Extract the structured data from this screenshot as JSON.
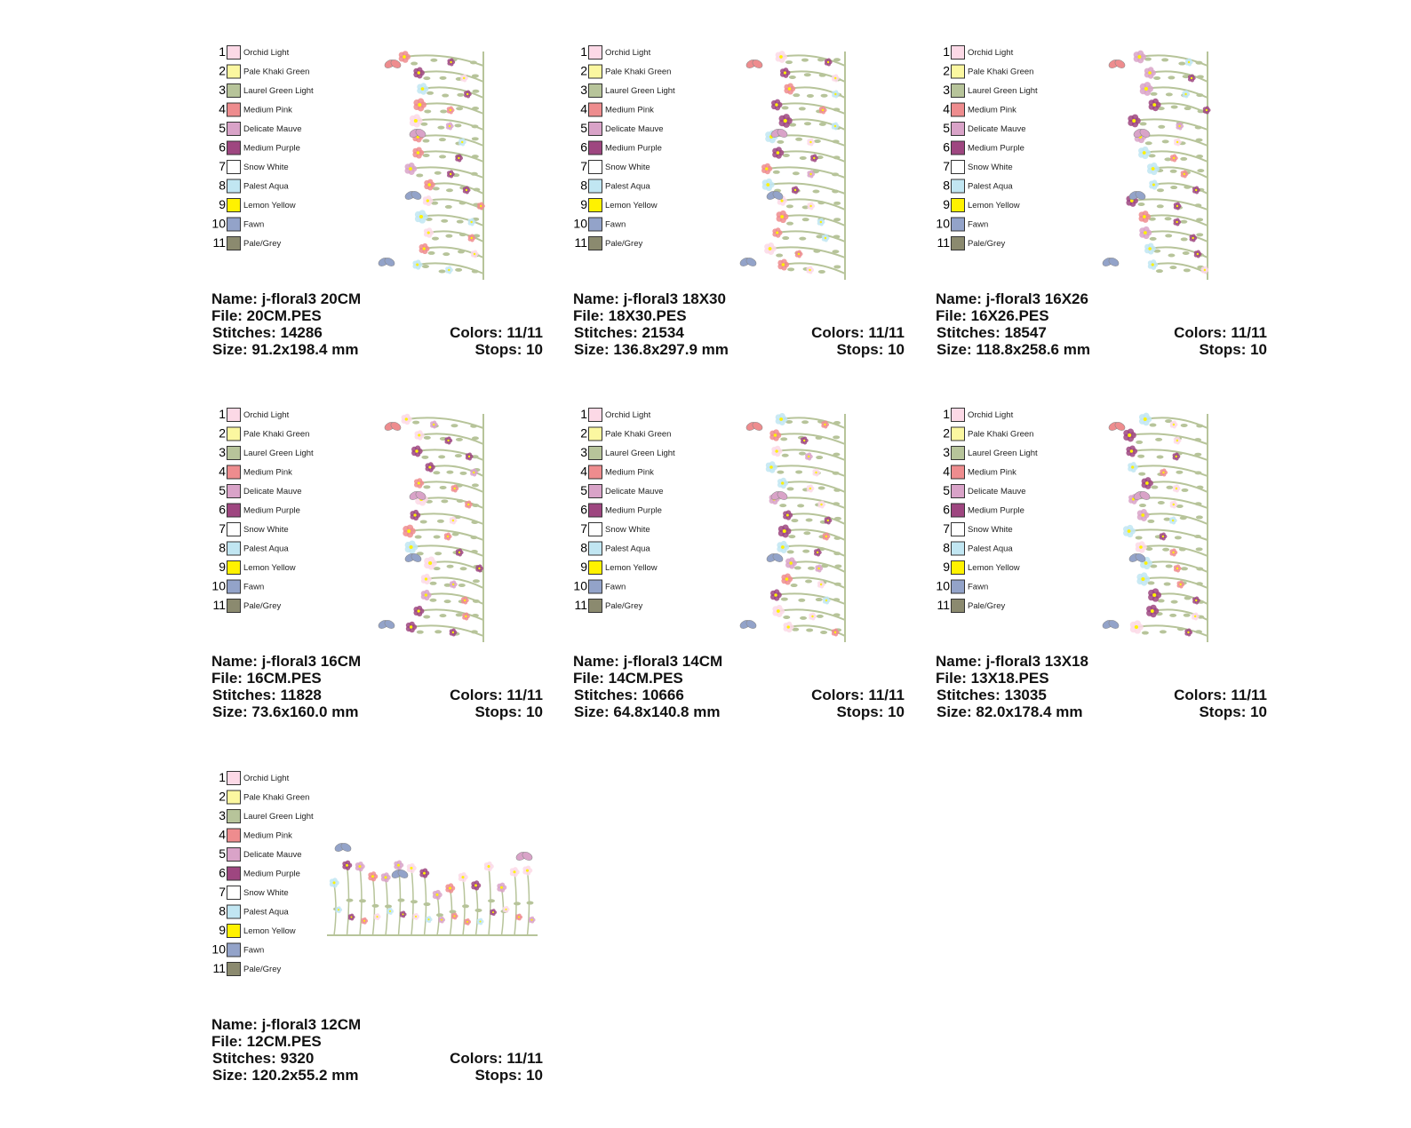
{
  "palette": [
    {
      "number": "1",
      "name": "Orchid Light",
      "color": "#fcd9e6"
    },
    {
      "number": "2",
      "name": "Pale Khaki Green",
      "color": "#fbf7a0"
    },
    {
      "number": "3",
      "name": "Laurel Green Light",
      "color": "#b7c49a"
    },
    {
      "number": "4",
      "name": "Medium Pink",
      "color": "#ee8c8e"
    },
    {
      "number": "5",
      "name": "Delicate Mauve",
      "color": "#d9a3c8"
    },
    {
      "number": "6",
      "name": "Medium Purple",
      "color": "#9e4680"
    },
    {
      "number": "7",
      "name": "Snow White",
      "color": "#ffffff"
    },
    {
      "number": "8",
      "name": "Palest Aqua",
      "color": "#c1e6f2"
    },
    {
      "number": "9",
      "name": "Lemon Yellow",
      "color": "#fff200"
    },
    {
      "number": "10",
      "name": "Fawn",
      "color": "#93a3c9"
    },
    {
      "number": "11",
      "name": "Pale/Grey",
      "color": "#8b8a6f"
    }
  ],
  "cards": [
    {
      "name": "Name: j-floral3 20CM",
      "file": "File: 20CM.PES",
      "stitches": "Stitches: 14286",
      "colors": "Colors: 11/11",
      "size": "Size: 91.2x198.4 mm",
      "stops": "Stops: 10"
    },
    {
      "name": "Name: j-floral3 18X30",
      "file": "File: 18X30.PES",
      "stitches": "Stitches: 21534",
      "colors": "Colors: 11/11",
      "size": "Size: 136.8x297.9 mm",
      "stops": "Stops: 10"
    },
    {
      "name": "Name: j-floral3 16X26",
      "file": "File: 16X26.PES",
      "stitches": "Stitches: 18547",
      "colors": "Colors: 11/11",
      "size": "Size: 118.8x258.6 mm",
      "stops": "Stops: 10"
    },
    {
      "name": "Name: j-floral3 16CM",
      "file": "File: 16CM.PES",
      "stitches": "Stitches: 11828",
      "colors": "Colors: 11/11",
      "size": "Size: 73.6x160.0 mm",
      "stops": "Stops: 10"
    },
    {
      "name": "Name: j-floral3 14CM",
      "file": "File: 14CM.PES",
      "stitches": "Stitches: 10666",
      "colors": "Colors: 11/11",
      "size": "Size: 64.8x140.8 mm",
      "stops": "Stops: 10"
    },
    {
      "name": "Name: j-floral3 13X18",
      "file": "File: 13X18.PES",
      "stitches": "Stitches: 13035",
      "colors": "Colors: 11/11",
      "size": "Size: 82.0x178.4 mm",
      "stops": "Stops: 10"
    },
    {
      "name": "Name: j-floral3 12CM",
      "file": "File: 12CM.PES",
      "stitches": "Stitches: 9320",
      "colors": "Colors: 11/11",
      "size": "Size: 120.2x55.2 mm",
      "stops": "Stops: 10"
    }
  ]
}
